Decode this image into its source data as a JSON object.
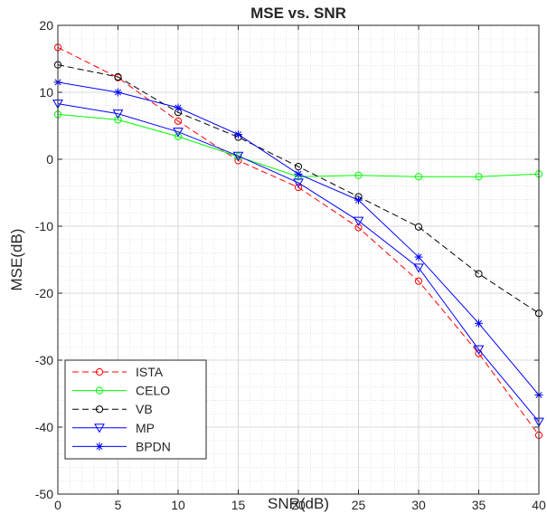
{
  "chart_data": {
    "type": "line",
    "title": "MSE vs. SNR",
    "xlabel": "SNR(dB)",
    "ylabel": "MSE(dB)",
    "xlim": [
      0,
      40
    ],
    "ylim": [
      -50,
      20
    ],
    "xticks": [
      0,
      5,
      10,
      15,
      20,
      25,
      30,
      35,
      40
    ],
    "yticks": [
      -50,
      -40,
      -30,
      -20,
      -10,
      0,
      10,
      20
    ],
    "grid": true,
    "minor_grid": true,
    "legend_position": "bottom-left",
    "x": [
      0,
      5,
      10,
      15,
      20,
      25,
      30,
      35,
      40
    ],
    "series": [
      {
        "name": "ISTA",
        "color": "#ff0000",
        "dash": "dashed",
        "marker": "circle",
        "values": [
          16.7,
          12.2,
          5.7,
          -0.2,
          -4.2,
          -10.2,
          -18.2,
          -29.0,
          -41.2
        ]
      },
      {
        "name": "CELO",
        "color": "#00ff00",
        "dash": "solid",
        "marker": "circle",
        "values": [
          6.7,
          5.9,
          3.4,
          0.4,
          -2.6,
          -2.4,
          -2.6,
          -2.6,
          -2.2
        ]
      },
      {
        "name": "VB",
        "color": "#000000",
        "dash": "dashed",
        "marker": "circle",
        "values": [
          14.1,
          12.3,
          7.0,
          3.3,
          -1.1,
          -5.6,
          -10.1,
          -17.1,
          -23.0
        ]
      },
      {
        "name": "MP",
        "color": "#0000ff",
        "dash": "solid",
        "marker": "triangle-down",
        "values": [
          8.3,
          6.8,
          4.1,
          0.5,
          -3.5,
          -9.2,
          -16.2,
          -28.4,
          -39.2
        ]
      },
      {
        "name": "BPDN",
        "color": "#0000ff",
        "dash": "solid",
        "marker": "asterisk",
        "values": [
          11.5,
          10.0,
          7.7,
          3.7,
          -2.2,
          -6.1,
          -14.6,
          -24.5,
          -35.2
        ]
      }
    ]
  }
}
